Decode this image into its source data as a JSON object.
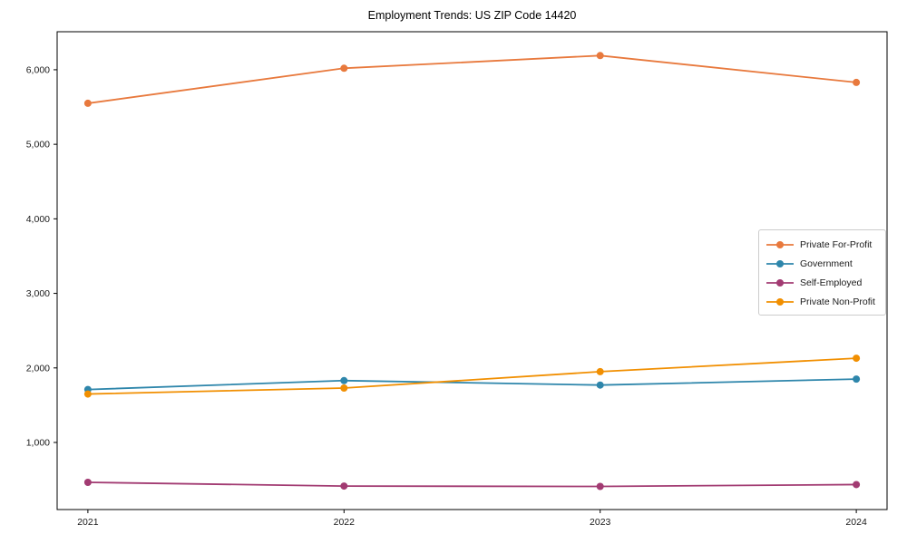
{
  "chart_data": {
    "type": "line",
    "title": "Employment Trends: US ZIP Code 14420",
    "x": [
      2021,
      2022,
      2023,
      2024
    ],
    "x_tick_labels": [
      "2021",
      "2022",
      "2023",
      "2024"
    ],
    "xlabel": "",
    "ylabel": "",
    "series": [
      {
        "name": "Private For-Profit",
        "color": "#E8793D",
        "values": [
          5550,
          6020,
          6190,
          5830
        ]
      },
      {
        "name": "Government",
        "color": "#2E86AB",
        "values": [
          1710,
          1830,
          1770,
          1850
        ]
      },
      {
        "name": "Self-Employed",
        "color": "#A23B72",
        "values": [
          465,
          415,
          410,
          435
        ]
      },
      {
        "name": "Private Non-Profit",
        "color": "#F18F01",
        "values": [
          1650,
          1730,
          1950,
          2130
        ]
      }
    ],
    "yticks": [
      1000,
      2000,
      3000,
      4000,
      5000,
      6000
    ],
    "ytick_labels": [
      "1,000",
      "2,000",
      "3,000",
      "4,000",
      "5,000",
      "6,000"
    ],
    "ylim": [
      100,
      6510
    ],
    "xlim": [
      2020.88,
      2024.12
    ],
    "grid": false,
    "legend_position": "center-right",
    "marker": "circle",
    "line_width": 1.8,
    "marker_radius": 4,
    "axis_color": "#000000",
    "text_color": "#1a1a1a"
  }
}
